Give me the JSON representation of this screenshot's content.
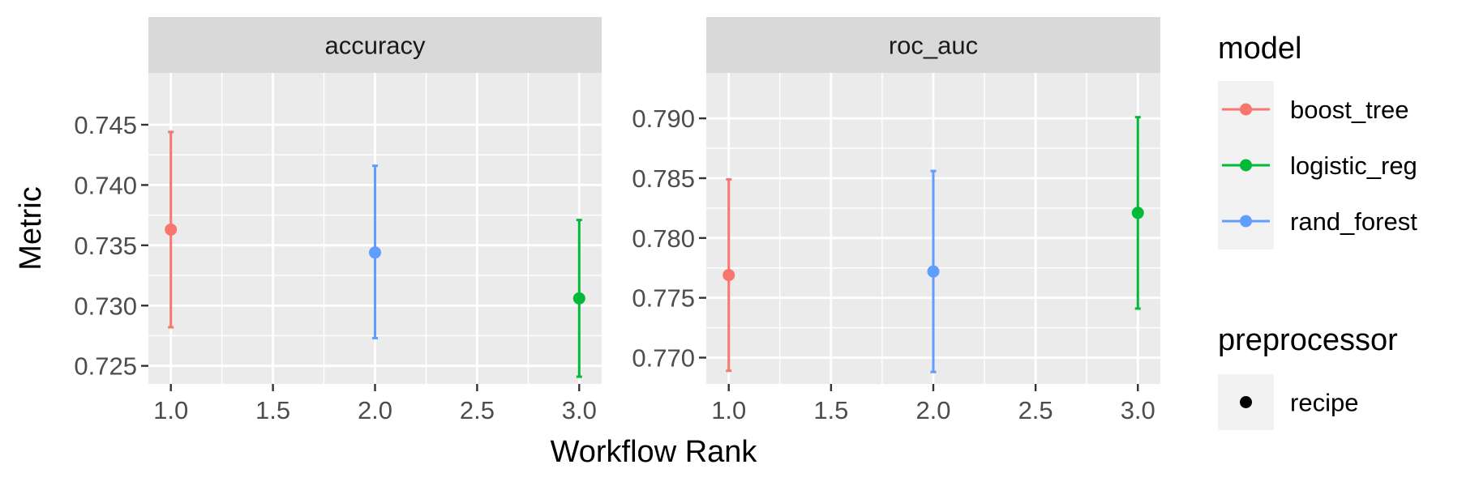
{
  "colors": {
    "boost_tree": "#F8766D",
    "logistic_reg": "#00BA38",
    "rand_forest": "#619CFF",
    "panel_bg": "#EBEBEB",
    "strip_bg": "#D9D9D9",
    "grid": "#FFFFFF",
    "text": "#4D4D4D",
    "title_text": "#000000"
  },
  "chart_data": {
    "type": "scatter",
    "subtype": "point-with-errorbars, faceted",
    "xlabel": "Workflow Rank",
    "ylabel": "Metric",
    "grid": true,
    "legend_position": "right",
    "facets": [
      {
        "label": "accuracy",
        "xlim": [
          0.89,
          3.11
        ],
        "ylim": [
          0.7235,
          0.7493
        ],
        "x_ticks": [
          1.0,
          1.5,
          2.0,
          2.5,
          3.0
        ],
        "x_tick_labels": [
          "1.0",
          "1.5",
          "2.0",
          "2.5",
          "3.0"
        ],
        "y_ticks": [
          0.725,
          0.73,
          0.735,
          0.74,
          0.745
        ],
        "y_tick_labels": [
          "0.725",
          "0.730",
          "0.735",
          "0.740",
          "0.745"
        ],
        "points": [
          {
            "model": "boost_tree",
            "x": 1,
            "y": 0.7363,
            "lower": 0.7282,
            "upper": 0.7444
          },
          {
            "model": "rand_forest",
            "x": 2,
            "y": 0.7344,
            "lower": 0.7273,
            "upper": 0.7416
          },
          {
            "model": "logistic_reg",
            "x": 3,
            "y": 0.7306,
            "lower": 0.7241,
            "upper": 0.7371
          }
        ]
      },
      {
        "label": "roc_auc",
        "xlim": [
          0.89,
          3.11
        ],
        "ylim": [
          0.7678,
          0.7938
        ],
        "x_ticks": [
          1.0,
          1.5,
          2.0,
          2.5,
          3.0
        ],
        "x_tick_labels": [
          "1.0",
          "1.5",
          "2.0",
          "2.5",
          "3.0"
        ],
        "y_ticks": [
          0.77,
          0.775,
          0.78,
          0.785,
          0.79
        ],
        "y_tick_labels": [
          "0.770",
          "0.775",
          "0.780",
          "0.785",
          "0.790"
        ],
        "points": [
          {
            "model": "boost_tree",
            "x": 1,
            "y": 0.7769,
            "lower": 0.7689,
            "upper": 0.7849
          },
          {
            "model": "rand_forest",
            "x": 2,
            "y": 0.7772,
            "lower": 0.7688,
            "upper": 0.7856
          },
          {
            "model": "logistic_reg",
            "x": 3,
            "y": 0.7821,
            "lower": 0.7741,
            "upper": 0.7901
          }
        ]
      }
    ],
    "legends": [
      {
        "title": "model",
        "items": [
          {
            "label": "boost_tree",
            "color": "#F8766D"
          },
          {
            "label": "logistic_reg",
            "color": "#00BA38"
          },
          {
            "label": "rand_forest",
            "color": "#619CFF"
          }
        ]
      },
      {
        "title": "preprocessor",
        "items": [
          {
            "label": "recipe",
            "shape": "point"
          }
        ]
      }
    ]
  }
}
